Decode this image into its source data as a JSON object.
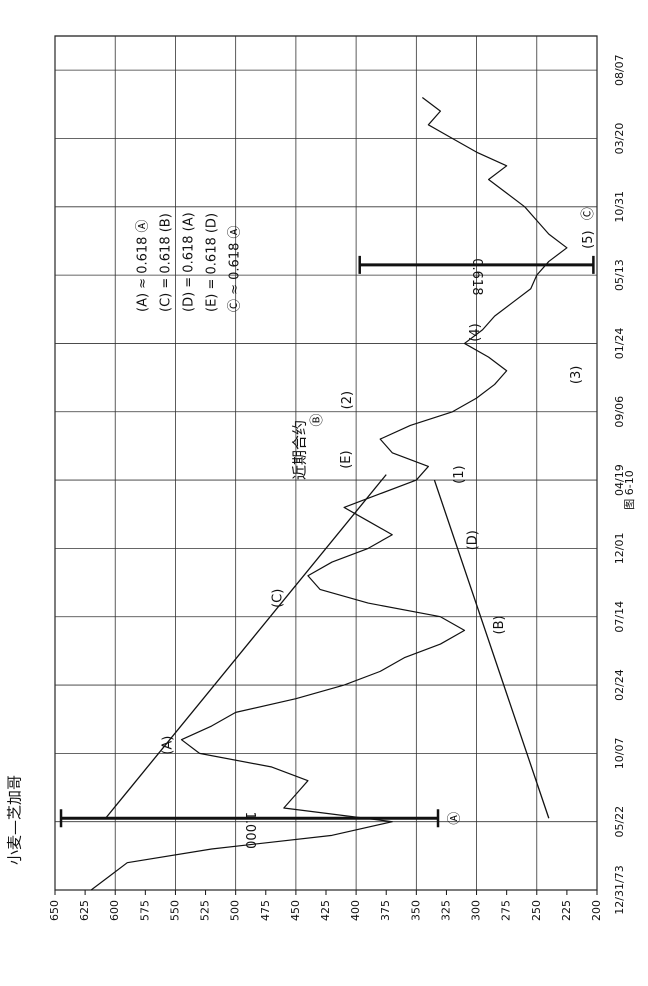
{
  "chart_data": {
    "type": "line",
    "title": "小麦—芝加哥",
    "subtitle": "近期合约",
    "caption": "图 6-10",
    "x": [
      0,
      0.2,
      0.4,
      0.6,
      0.8,
      1.0,
      1.2,
      1.4,
      1.6,
      1.8,
      2.0,
      2.2,
      2.4,
      2.6,
      2.8,
      3.0,
      3.2,
      3.4,
      3.6,
      3.8,
      4.0,
      4.2,
      4.4,
      4.6,
      4.8,
      5.0,
      5.2,
      5.4,
      5.6,
      5.8,
      6.0,
      6.2,
      6.4,
      6.6,
      6.8,
      7.0,
      7.2,
      7.4,
      7.6,
      7.8,
      8.0,
      8.2,
      8.4,
      8.6,
      8.8,
      9.0,
      9.2,
      9.4,
      9.6,
      9.8,
      10.0,
      10.2,
      10.4,
      10.6,
      10.8,
      11.0,
      11.2,
      11.4,
      11.6
    ],
    "values": [
      620,
      605,
      590,
      520,
      420,
      370,
      460,
      450,
      440,
      470,
      530,
      545,
      520,
      500,
      450,
      410,
      380,
      360,
      330,
      310,
      330,
      390,
      430,
      440,
      420,
      390,
      370,
      390,
      410,
      380,
      350,
      340,
      370,
      380,
      355,
      320,
      300,
      285,
      275,
      290,
      310,
      295,
      285,
      270,
      255,
      250,
      240,
      225,
      240,
      250,
      260,
      275,
      290,
      275,
      300,
      320,
      340,
      330,
      345
    ],
    "color": "#111111",
    "xlim": [
      0,
      12.5
    ],
    "xticks": [
      {
        "value": 0,
        "label": "12/31/73"
      },
      {
        "value": 1,
        "label": "05/22"
      },
      {
        "value": 2,
        "label": "10/07"
      },
      {
        "value": 3,
        "label": "02/24"
      },
      {
        "value": 4,
        "label": "07/14"
      },
      {
        "value": 5,
        "label": "12/01"
      },
      {
        "value": 6,
        "label": "04/19"
      },
      {
        "value": 7,
        "label": "09/06"
      },
      {
        "value": 8,
        "label": "01/24"
      },
      {
        "value": 9,
        "label": "05/13"
      },
      {
        "value": 10,
        "label": "10/31"
      },
      {
        "value": 11,
        "label": "03/20"
      },
      {
        "value": 12,
        "label": "08/07"
      }
    ],
    "ylim": [
      200,
      650
    ],
    "yticks": [
      200,
      225,
      250,
      275,
      300,
      325,
      350,
      375,
      400,
      425,
      450,
      475,
      500,
      525,
      550,
      575,
      600,
      625,
      650
    ],
    "grid": true,
    "trendlines": [
      {
        "x": [
          1.05,
          6.08
        ],
        "y": [
          608,
          375
        ]
      },
      {
        "x": [
          1.05,
          6.0
        ],
        "y": [
          240,
          335
        ]
      }
    ],
    "measures": [
      {
        "label": "1.000",
        "x": 1.05,
        "from": 645,
        "to": 332
      },
      {
        "label": "0.618",
        "x": 9.15,
        "from": 397,
        "to": 203
      }
    ],
    "labels": [
      {
        "text": "(A)",
        "x": 2.12,
        "y": 556
      },
      {
        "text": "(C)",
        "x": 4.27,
        "y": 465
      },
      {
        "text": "(B)",
        "x": 3.88,
        "y": 281
      },
      {
        "text": "(D)",
        "x": 5.12,
        "y": 303
      },
      {
        "text": "(E)",
        "x": 6.3,
        "y": 408
      },
      {
        "text": "Ⓑ",
        "x": 6.88,
        "y": 432
      },
      {
        "text": "(2)",
        "x": 7.17,
        "y": 407
      },
      {
        "text": "(1)",
        "x": 6.08,
        "y": 314
      },
      {
        "text": "(3)",
        "x": 7.54,
        "y": 217
      },
      {
        "text": "(4)",
        "x": 8.16,
        "y": 301
      },
      {
        "text": "(5)",
        "x": 9.52,
        "y": 207
      },
      {
        "text": "Ⓒ",
        "x": 9.9,
        "y": 207
      },
      {
        "text": "Ⓐ",
        "x": 1.05,
        "y": 318
      }
    ],
    "notes": [
      "(A) ≈ 0.618 Ⓐ",
      "(C) = 0.618 (B)",
      "(D) = 0.618 (A)",
      "(E) = 0.618 (D)",
      "Ⓒ ≈ 0.618 Ⓐ"
    ]
  }
}
